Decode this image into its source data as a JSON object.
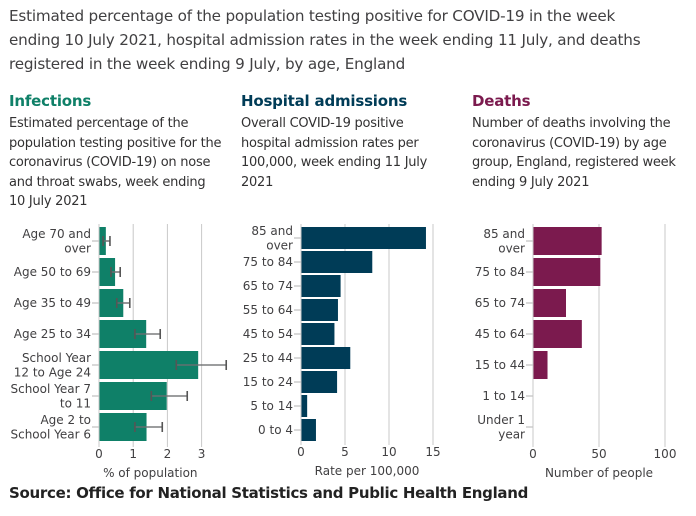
{
  "title": "Estimated percentage of the population testing positive for COVID-19 in the week ending 10 July 2021, hospital admission rates in the week ending 11 July, and deaths registered in the week ending 9 July, by age, England",
  "source": "Source: Office for National Statistics and Public Health England",
  "panels": [
    {
      "title": "Infections",
      "subtitle": "Estimated percentage of the population testing positive for the coronavirus (COVID-19) on nose and throat swabs, week ending 10 July 2021",
      "color": "#0F8068"
    },
    {
      "title": "Hospital admissions",
      "subtitle": "Overall COVID-19 positive hospital admission rates per 100,000, week ending 11 July 2021",
      "color": "#003C57"
    },
    {
      "title": "Deaths",
      "subtitle": "Number of deaths involving the coronavirus (COVID-19) by age group, England, registered week ending 9 July 2021",
      "color": "#7B1A4E"
    }
  ],
  "chart_data": [
    {
      "type": "bar",
      "orientation": "horizontal",
      "title": "Infections",
      "xlabel": "% of population",
      "ylabel": "",
      "xlim": [
        0,
        3.8
      ],
      "xticks": [
        0,
        1,
        2,
        3
      ],
      "grid": true,
      "color": "#0F8068",
      "categories": [
        [
          "Age 70 and",
          "over"
        ],
        [
          "Age 50 to 69"
        ],
        [
          "Age 35 to 49"
        ],
        [
          "Age 25 to 34"
        ],
        [
          "School Year",
          "12 to Age 24"
        ],
        [
          "School Year 7",
          "to 11"
        ],
        [
          "Age 2 to",
          "School Year 6"
        ]
      ],
      "values": [
        0.2,
        0.47,
        0.71,
        1.38,
        2.9,
        1.98,
        1.39
      ],
      "error_low": [
        0.12,
        0.35,
        0.52,
        1.05,
        2.26,
        1.53,
        1.05
      ],
      "error_high": [
        0.32,
        0.62,
        0.9,
        1.79,
        3.72,
        2.58,
        1.85
      ]
    },
    {
      "type": "bar",
      "orientation": "horizontal",
      "title": "Hospital admissions",
      "xlabel": "Rate per 100,000",
      "ylabel": "",
      "xlim": [
        0,
        15.5
      ],
      "xticks": [
        0,
        5,
        10,
        15
      ],
      "grid": true,
      "color": "#003C57",
      "categories": [
        [
          "85 and",
          "over"
        ],
        [
          "75 to 84"
        ],
        [
          "65 to 74"
        ],
        [
          "55 to 64"
        ],
        [
          "45 to 54"
        ],
        [
          "25 to 44"
        ],
        [
          "15 to 24"
        ],
        [
          "5 to 14"
        ],
        [
          "0 to 4"
        ]
      ],
      "values": [
        14.2,
        8.1,
        4.5,
        4.2,
        3.8,
        5.6,
        4.1,
        0.7,
        1.7
      ]
    },
    {
      "type": "bar",
      "orientation": "horizontal",
      "title": "Deaths",
      "xlabel": "Number of people",
      "ylabel": "",
      "xlim": [
        0,
        100
      ],
      "xticks": [
        0,
        50,
        100
      ],
      "grid": true,
      "color": "#7B1A4E",
      "categories": [
        [
          "85 and",
          "over"
        ],
        [
          "75 to 84"
        ],
        [
          "65 to 74"
        ],
        [
          "45 to 64"
        ],
        [
          "15 to 44"
        ],
        [
          "1 to 14"
        ],
        [
          "Under 1",
          "year"
        ]
      ],
      "values": [
        52,
        51,
        25,
        37,
        11,
        0,
        0
      ]
    }
  ]
}
